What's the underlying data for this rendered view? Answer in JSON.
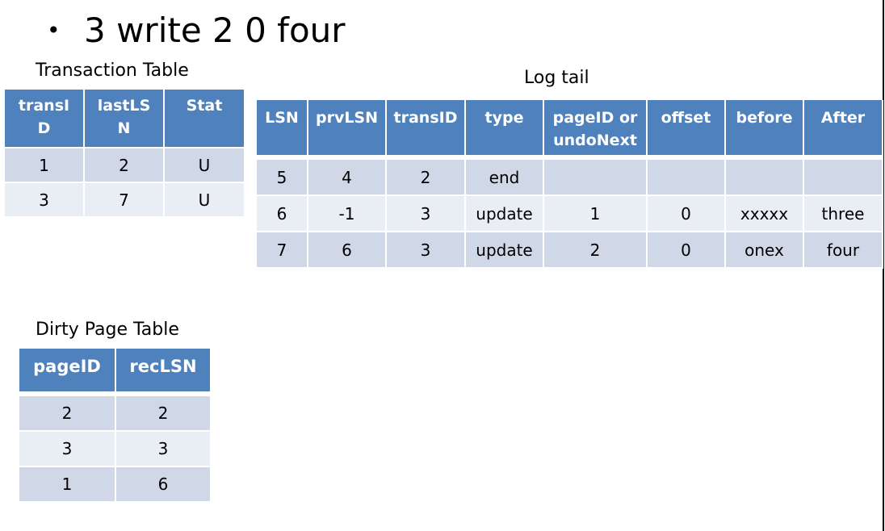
{
  "slide": {
    "bullet": "•",
    "heading": "3 write 2 0 four"
  },
  "transaction_table": {
    "caption": "Transaction Table",
    "headers": [
      "transID",
      "lastLSN",
      "Stat"
    ],
    "header_lines": [
      [
        "transI",
        "D"
      ],
      [
        "lastLS",
        "N"
      ],
      [
        "Stat"
      ]
    ],
    "rows": [
      [
        "1",
        "2",
        "U"
      ],
      [
        "3",
        "7",
        "U"
      ]
    ]
  },
  "log_tail": {
    "caption": "Log tail",
    "headers": [
      "LSN",
      "prvLSN",
      "transID",
      "type",
      "pageID or undoNext",
      "offset",
      "before",
      "After"
    ],
    "header_lines": [
      [
        "LSN"
      ],
      [
        "prvLSN"
      ],
      [
        "transID"
      ],
      [
        "type"
      ],
      [
        "pageID or",
        "undoNext"
      ],
      [
        "offset"
      ],
      [
        "before"
      ],
      [
        "After"
      ]
    ],
    "rows": [
      [
        "5",
        "4",
        "2",
        "end",
        "",
        "",
        "",
        ""
      ],
      [
        "6",
        "-1",
        "3",
        "update",
        "1",
        "0",
        "xxxxx",
        "three"
      ],
      [
        "7",
        "6",
        "3",
        "update",
        "2",
        "0",
        "onex",
        "four"
      ]
    ]
  },
  "dirty_page_table": {
    "caption": "Dirty Page Table",
    "headers": [
      "pageID",
      "recLSN"
    ],
    "rows": [
      [
        "2",
        "2"
      ],
      [
        "3",
        "3"
      ],
      [
        "1",
        "6"
      ]
    ]
  },
  "colors": {
    "header_bg": "#4f81bd",
    "row_odd_bg": "#d0d8e8",
    "row_even_bg": "#e9edf4"
  }
}
